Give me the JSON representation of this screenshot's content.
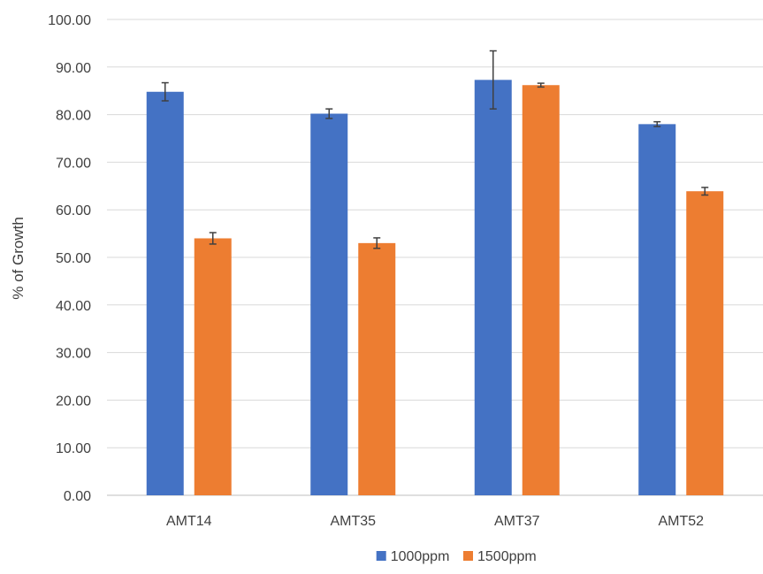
{
  "chart_data": {
    "type": "bar",
    "categories": [
      "AMT14",
      "AMT35",
      "AMT37",
      "AMT52"
    ],
    "series": [
      {
        "name": "1000ppm",
        "color": "#4472C4",
        "values": [
          84.8,
          80.2,
          87.3,
          78.0
        ],
        "error": [
          1.9,
          1.0,
          6.1,
          0.5
        ]
      },
      {
        "name": "1500ppm",
        "color": "#ED7D31",
        "values": [
          54.0,
          53.0,
          86.2,
          63.9
        ],
        "error": [
          1.2,
          1.1,
          0.4,
          0.8
        ]
      }
    ],
    "title": "",
    "xlabel": "",
    "ylabel": "% of Growth",
    "ylim": [
      0,
      100
    ],
    "yticks": [
      "0.00",
      "10.00",
      "20.00",
      "30.00",
      "40.00",
      "50.00",
      "60.00",
      "70.00",
      "80.00",
      "90.00",
      "100.00"
    ],
    "grid": true,
    "legend_position": "bottom"
  }
}
